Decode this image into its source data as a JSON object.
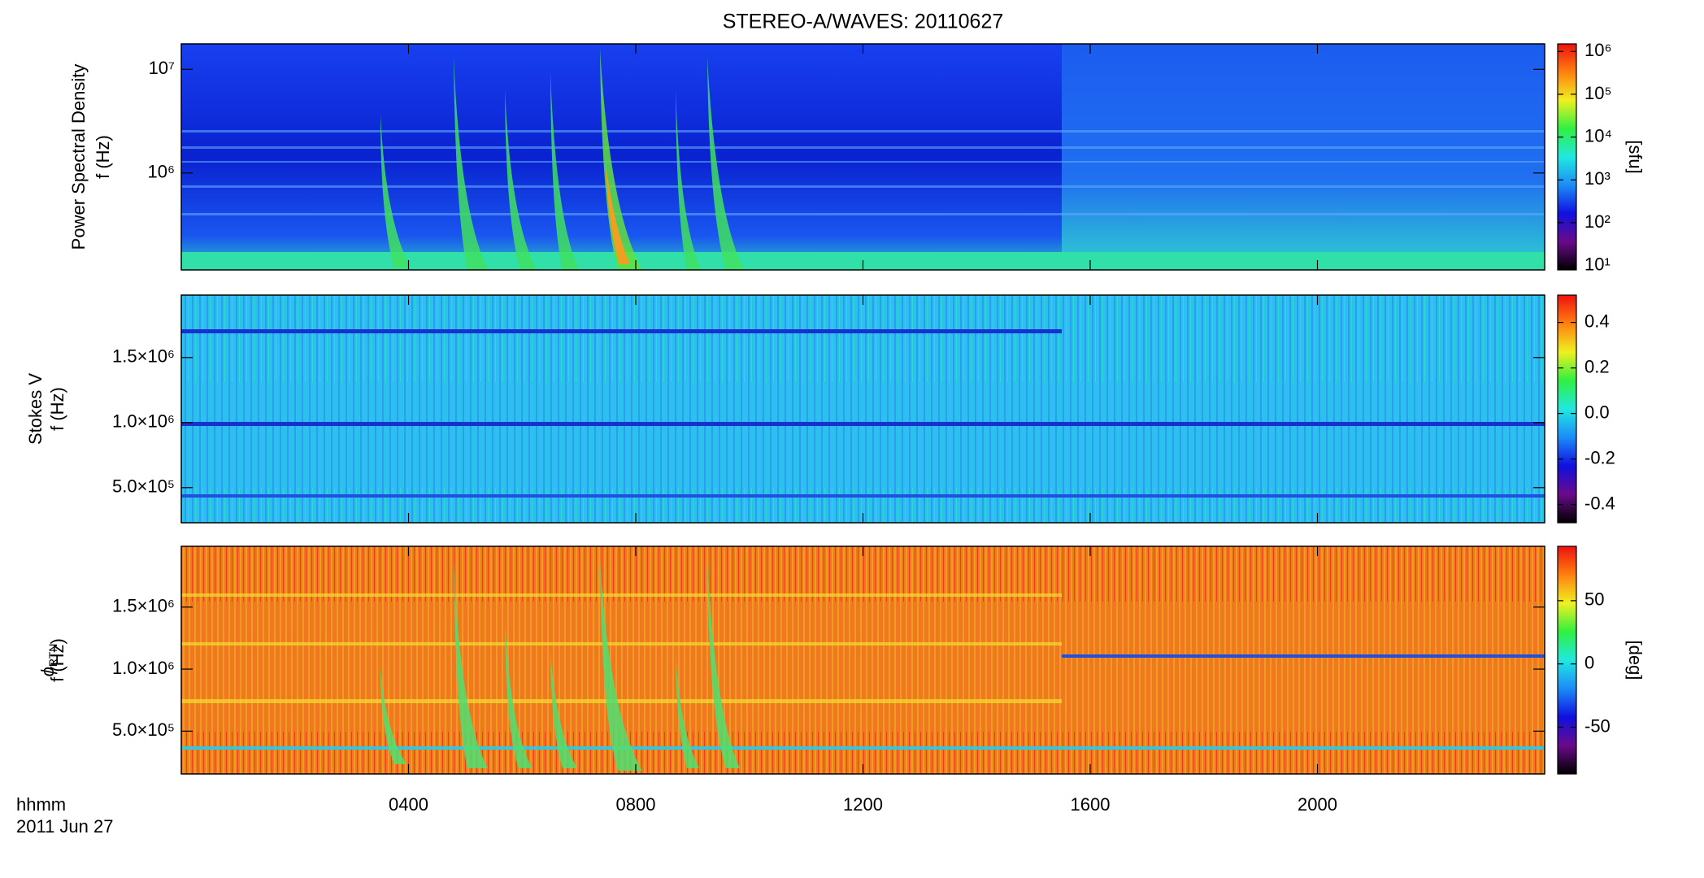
{
  "chart_data": [
    {
      "type": "heatmap",
      "title": "STEREO-A/WAVES: 20110627",
      "ylabel": "Power Spectral Density",
      "ylabel2": "f (Hz)",
      "ylog": true,
      "ylim": [
        116000,
        17600000
      ],
      "yticks": [
        {
          "value": 1000000,
          "label": "10⁶"
        },
        {
          "value": 10000000,
          "label": "10⁷"
        }
      ],
      "colorbar": {
        "log": true,
        "lim": [
          7.9,
          1500000
        ],
        "label": "[sfu]",
        "ticks": [
          {
            "value": 10,
            "label": "10¹"
          },
          {
            "value": 100,
            "label": "10²"
          },
          {
            "value": 1000,
            "label": "10³"
          },
          {
            "value": 10000,
            "label": "10⁴"
          },
          {
            "value": 100000,
            "label": "10⁵"
          },
          {
            "value": 1000000,
            "label": "10⁶"
          }
        ],
        "colors": [
          "#000000",
          "#6a0a8a",
          "#1010e0",
          "#1c8cf8",
          "#20e8e0",
          "#30f040",
          "#f0f020",
          "#ff8010",
          "#f01010"
        ]
      }
    },
    {
      "type": "heatmap",
      "ylabel": "Stokes V",
      "ylabel2": "f (Hz)",
      "ylog": false,
      "ylim": [
        230000,
        1980000
      ],
      "yticks": [
        {
          "value": 500000,
          "label": "5.0×10⁵"
        },
        {
          "value": 1000000,
          "label": "1.0×10⁶"
        },
        {
          "value": 1500000,
          "label": "1.5×10⁶"
        }
      ],
      "colorbar": {
        "log": false,
        "lim": [
          -0.48,
          0.52
        ],
        "ticks": [
          -0.4,
          -0.2,
          {
            "value": 0,
            "label": "0.0"
          },
          0.2,
          0.4
        ],
        "colors": [
          "#000000",
          "#6a0a8a",
          "#1010e0",
          "#1c8cf8",
          "#20e8e0",
          "#30f040",
          "#f0f020",
          "#ff8010",
          "#f01010"
        ]
      }
    },
    {
      "type": "heatmap",
      "ylabel": "ϕ",
      "ylabel_sub": "RTN",
      "ylabel2": "f (Hz)",
      "ylog": false,
      "ylim": [
        155000,
        1990000
      ],
      "yticks": [
        {
          "value": 500000,
          "label": "5.0×10⁵"
        },
        {
          "value": 1000000,
          "label": "1.0×10⁶"
        },
        {
          "value": 1500000,
          "label": "1.5×10⁶"
        }
      ],
      "colorbar": {
        "log": false,
        "lim": [
          -87,
          93
        ],
        "label": "[deg]",
        "ticks": [
          -50,
          0,
          50
        ],
        "colors": [
          "#000000",
          "#6a0a8a",
          "#1010e0",
          "#1c8cf8",
          "#20e8e0",
          "#30f040",
          "#f0f020",
          "#ff8010",
          "#f01010"
        ]
      },
      "xlim": [
        0,
        24
      ],
      "xticks": [
        {
          "value": 4,
          "label": "0400"
        },
        {
          "value": 8,
          "label": "0800"
        },
        {
          "value": 12,
          "label": "1200"
        },
        {
          "value": 16,
          "label": "1600"
        },
        {
          "value": 20,
          "label": "2000"
        }
      ],
      "xlabel": "hhmm",
      "date": "2011 Jun 27"
    }
  ]
}
